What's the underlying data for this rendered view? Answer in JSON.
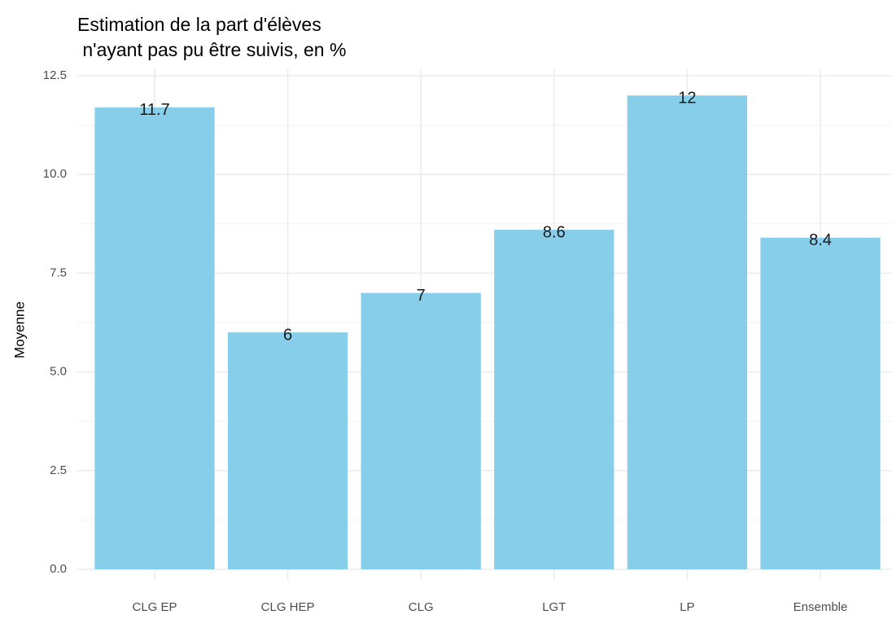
{
  "chart_data": {
    "type": "bar",
    "title": [
      "Estimation de la part d'élèves",
      " n'ayant pas pu être suivis, en %"
    ],
    "y_label": "Moyenne",
    "categories": [
      "CLG EP",
      "CLG HEP",
      "CLG",
      "LGT",
      "LP",
      "Ensemble"
    ],
    "values": [
      11.7,
      6,
      7,
      8.6,
      12,
      8.4
    ],
    "color": "#87ceeb",
    "ylim": [
      0,
      12.5
    ],
    "yticks": [
      {
        "value": 0,
        "label": "0.0"
      },
      2.5,
      {
        "value": 5,
        "label": "5.0"
      },
      7.5,
      {
        "value": 10,
        "label": "10.0"
      },
      12.5
    ],
    "minor_yticks": [
      1.25,
      3.75,
      6.25,
      8.75,
      11.25
    ],
    "grid": true
  }
}
